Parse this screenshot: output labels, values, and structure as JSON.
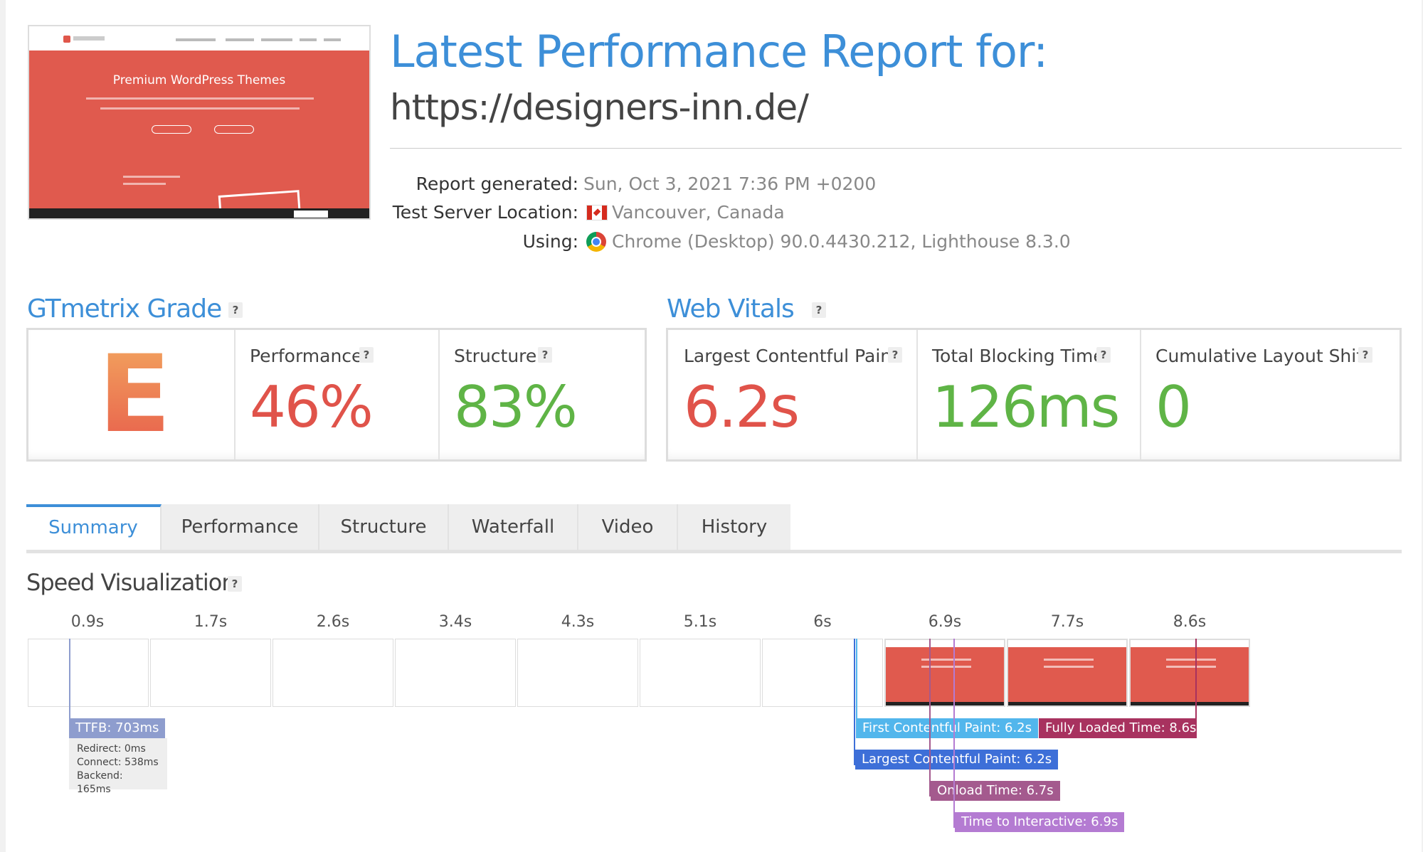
{
  "header": {
    "title": "Latest Performance Report for:",
    "url": "https://designers-inn.de/",
    "thumbnail_hero_title": "Premium WordPress Themes",
    "meta": [
      {
        "label": "Report generated:",
        "value": "Sun, Oct 3, 2021 7:36 PM +0200"
      },
      {
        "label": "Test Server Location:",
        "value": "Vancouver, Canada",
        "icon": "canada-flag-icon"
      },
      {
        "label": "Using:",
        "value": "Chrome (Desktop) 90.0.4430.212, Lighthouse 8.3.0",
        "icon": "chrome-icon"
      }
    ]
  },
  "grade": {
    "title": "GTmetrix Grade",
    "help": "?",
    "letter": "E",
    "performance_label": "Performance",
    "performance_value": "46%",
    "structure_label": "Structure",
    "structure_value": "83%"
  },
  "web_vitals": {
    "title": "Web Vitals",
    "help": "?",
    "lcp_label": "Largest Contentful Paint",
    "lcp_value": "6.2s",
    "tbt_label": "Total Blocking Time",
    "tbt_value": "126ms",
    "cls_label": "Cumulative Layout Shift",
    "cls_value": "0"
  },
  "tabs": [
    {
      "label": "Summary",
      "active": true
    },
    {
      "label": "Performance"
    },
    {
      "label": "Structure"
    },
    {
      "label": "Waterfall"
    },
    {
      "label": "Video"
    },
    {
      "label": "History"
    }
  ],
  "speed_visualization": {
    "title": "Speed Visualization",
    "help": "?",
    "ticks": [
      "0.9s",
      "1.7s",
      "2.6s",
      "3.4s",
      "4.3s",
      "5.1s",
      "6s",
      "6.9s",
      "7.7s",
      "8.6s"
    ],
    "ttfb": {
      "label": "TTFB: 703ms",
      "redirect": "Redirect: 0ms",
      "connect": "Connect: 538ms",
      "backend": "Backend: 165ms"
    },
    "markers": {
      "fcp": "First Contentful Paint: 6.2s",
      "lcp": "Largest Contentful Paint: 6.2s",
      "onload": "Onload Time: 6.7s",
      "tti": "Time to Interactive: 6.9s",
      "fully_loaded": "Fully Loaded Time: 8.6s"
    }
  },
  "colors": {
    "accent": "#3d8fd8",
    "bad": "#e0534a",
    "good": "#5fb446",
    "ttfb": "#8e9dce",
    "fcp": "#52b6ec",
    "lcp": "#3d6fd8",
    "onload": "#a45a8e",
    "tti": "#b47bd2",
    "fully_loaded": "#a8325f"
  }
}
